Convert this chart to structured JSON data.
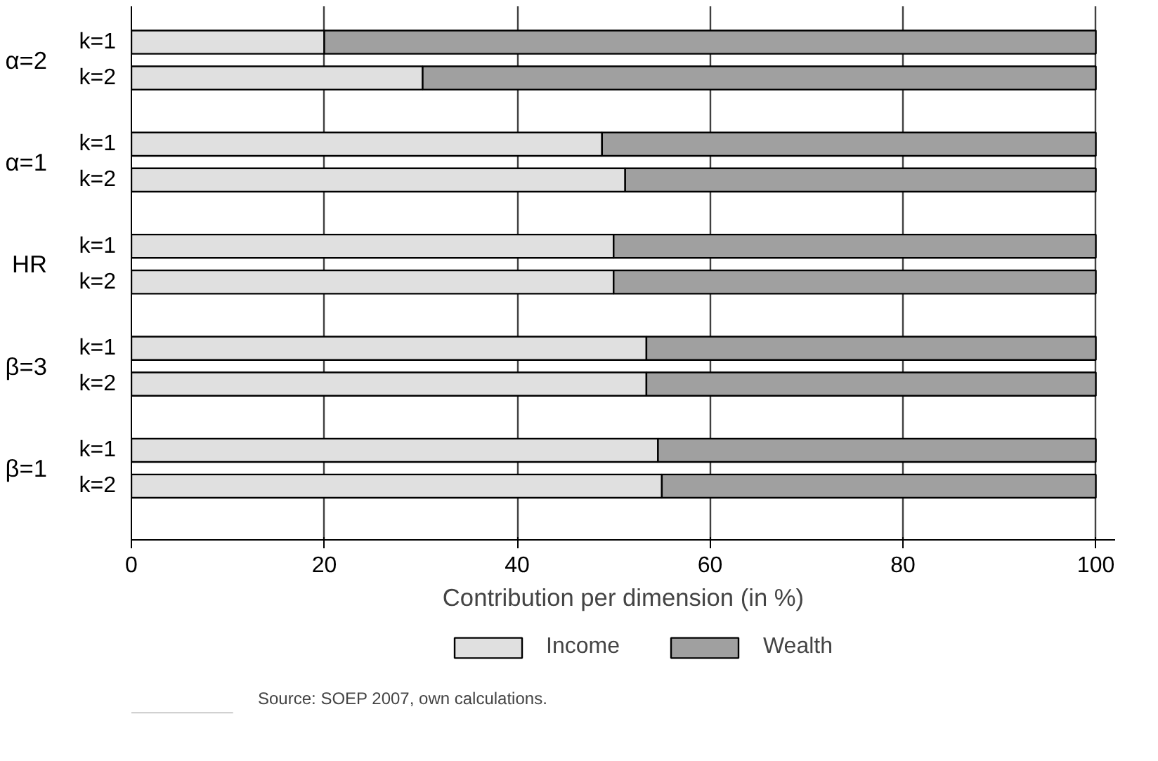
{
  "chart_data": {
    "type": "bar",
    "orientation": "horizontal",
    "stacked": true,
    "categories": [
      "k=1",
      "k=2",
      "k=1",
      "k=2",
      "k=1",
      "k=2",
      "k=1",
      "k=2",
      "k=1",
      "k=2"
    ],
    "series": [
      {
        "name": "Income",
        "color": "#e0e0e0",
        "values": [
          20,
          30.2,
          48.8,
          51.2,
          50,
          50,
          53.4,
          53.4,
          54.6,
          55
        ]
      },
      {
        "name": "Wealth",
        "color": "#a0a0a0",
        "values": [
          80,
          69.8,
          51.2,
          48.8,
          50,
          50,
          46.6,
          46.6,
          45.4,
          45
        ]
      }
    ],
    "xlabel": "Contribution per dimension (in %)",
    "xlim": [
      0,
      102
    ],
    "xticks": [
      0,
      20,
      40,
      60,
      80,
      100
    ],
    "grid": "x",
    "legend": "bottom",
    "annotations": [
      "α=2",
      "α=1",
      "HR",
      "β=3",
      "β=1",
      "Source: SOEP 2007, own calculations."
    ]
  }
}
